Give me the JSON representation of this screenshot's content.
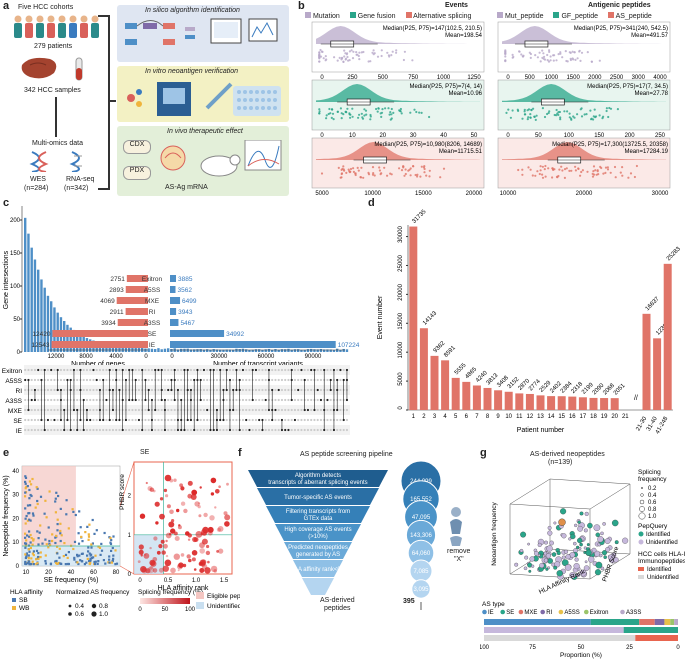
{
  "panel_labels": {
    "a": "a",
    "b": "b",
    "c": "c",
    "d": "d",
    "e": "e",
    "f": "f",
    "g": "g"
  },
  "a": {
    "cohorts": "Five HCC cohorts",
    "patients": "279 patients",
    "samples": "342 HCC samples",
    "multiomics": "Multi-omics data",
    "wes": "WES",
    "wes_n": "(n=284)",
    "rnaseq": "RNA-seq",
    "rnaseq_n": "(n=342)",
    "step1": "In silico algorithm identification",
    "step2": "In vitro neoantigen verification",
    "step3": "In vivo therapeutic effect",
    "cdx": "CDX",
    "pdx": "PDX",
    "mrna": "AS-Ag mRNA",
    "colors": {
      "step1": "#dfe6f2",
      "step2": "#f3f1c4",
      "step3": "#e3efd9",
      "people_teal": "#2b8a8a",
      "people_red": "#d9605a"
    }
  },
  "b": {
    "events_title": "Events",
    "peptides_title": "Antigenic peptides",
    "legend_left": [
      "Mutation",
      "Gene fusion",
      "Alternative splicing"
    ],
    "legend_right": [
      "Mut_peptide",
      "GF_peptide",
      "AS_peptide"
    ],
    "colors": {
      "mutation": "#b8a9c9",
      "fusion": "#2aa58a",
      "as": "#e07468"
    },
    "rows": [
      {
        "median": "Median(P25, P75)=147(102.5, 210.5)",
        "mean": "Mean=198.54",
        "ticks": [
          "0",
          "250",
          "500",
          "750",
          "1000",
          "1250"
        ]
      },
      {
        "median": "Median(P25, P75)=7(4, 14)",
        "mean": "Mean=10.96",
        "ticks": [
          "0",
          "10",
          "20",
          "30",
          "40",
          "50"
        ]
      },
      {
        "median": "Median(P25, P75)=10,980(8206, 14689)",
        "mean": "Mean=11715.51",
        "ticks": [
          "5000",
          "10000",
          "15000",
          "20000"
        ]
      }
    ],
    "rows_right": [
      {
        "median": "Median(P25, P75)=341(240, 542.5)",
        "mean": "Mean=491.57",
        "ticks": [
          "0",
          "500",
          "1000",
          "1500",
          "2000",
          "2500",
          "3000",
          "4000"
        ]
      },
      {
        "median": "Median(P25, P75)=17(7, 34.5)",
        "mean": "Mean=27.78",
        "ticks": [
          "0",
          "50",
          "100",
          "150",
          "200",
          "250"
        ]
      },
      {
        "median": "Median(P25, P75)=17,300(13725.5, 20358)",
        "mean": "Mean=17284.19",
        "ticks": [
          "10000",
          "20000",
          "30000"
        ]
      }
    ]
  },
  "c": {
    "ylabel": "Gene intersections",
    "xlabel_genes": "Number of genes",
    "xlabel_tv": "Number of transcript variants",
    "yticks": [
      "0",
      "50",
      "100",
      "150",
      "200"
    ],
    "gene_ticks": [
      "12000",
      "8000",
      "4000",
      "0"
    ],
    "tv_ticks": [
      "0",
      "30000",
      "60000",
      "90000"
    ],
    "sets": [
      "Exitron",
      "A5SS",
      "MXE",
      "RI",
      "A3SS",
      "SE",
      "IE"
    ],
    "genes": [
      2751,
      2893,
      4069,
      2911,
      3934,
      12420,
      12543
    ],
    "variants": [
      3885,
      3562,
      6499,
      3943,
      5467,
      34992,
      107224
    ],
    "row_labels": [
      "Exitron",
      "A5SS",
      "RI",
      "A3SS",
      "MXE",
      "SE",
      "IE"
    ],
    "colors": {
      "genes": "#e07468",
      "variants": "#4e8fc7",
      "dots": "#333333"
    }
  },
  "chart_data": [
    {
      "type": "bar",
      "title": "",
      "xlabel": "Patient number",
      "ylabel": "Event number",
      "categories": [
        "1",
        "2",
        "3",
        "4",
        "5",
        "6",
        "7",
        "8",
        "9",
        "10",
        "11",
        "12",
        "13",
        "14",
        "15",
        "16",
        "17",
        "18",
        "19",
        "20",
        "21",
        "...",
        "21-30",
        "31-40",
        "41-248"
      ],
      "values": [
        31735,
        14143,
        9362,
        8591,
        5555,
        4865,
        4240,
        3813,
        3408,
        3152,
        2870,
        2774,
        2529,
        2402,
        2384,
        2318,
        2199,
        2090,
        2068,
        2051,
        null,
        null,
        16637,
        12396,
        25283
      ],
      "ylim": [
        0,
        32000
      ],
      "yticks": [
        "0",
        "5000",
        "10000",
        "15000",
        "20000",
        "25000",
        "30000"
      ],
      "color": "#e07468"
    }
  ],
  "e": {
    "title": "SE",
    "xlabel": "SE frequency (%)",
    "ylabel": "Neopeptide frequency (%)",
    "xticks": [
      "10",
      "20",
      "40",
      "60",
      "80"
    ],
    "yticks": [
      "0",
      "10",
      "20",
      "30",
      "40"
    ],
    "zoom_xlabel": "HLA affinity rank",
    "zoom_ylabel": "PHBR score",
    "zoom_xticks": [
      "0",
      "0.5",
      "1.0",
      "1.5"
    ],
    "zoom_yticks": [
      "0",
      "1",
      "2"
    ],
    "legend_hla_title": "HLA affinity",
    "legend_hla": [
      "SB",
      "WB"
    ],
    "legend_norm_title": "Normalized AS frequency",
    "legend_norm": [
      "0.4",
      "0.8",
      "0.6",
      "1.0"
    ],
    "legend_split_title": "Splicing frequency (%)",
    "legend_split_ticks": [
      "0",
      "50",
      "100"
    ],
    "legend_eligible": "Eligible peptides",
    "legend_unidentified": "Unidentified peptides",
    "colors": {
      "sb": "#4a78b0",
      "wb": "#f0b43c",
      "eligible": "#f4c6c2",
      "unident": "#c9dff0",
      "zoom_border": "#e8654f",
      "line": "#3cb39a"
    }
  },
  "f": {
    "title": "AS peptide screening pipeline",
    "steps": [
      {
        "label": "Algorithm detects transcripts of aberrant splicing events",
        "count": "244,099"
      },
      {
        "label": "Tumor-specific AS events",
        "count": "165,552"
      },
      {
        "label": "Filtering transcripts from GTEx data",
        "count": "47,095"
      },
      {
        "label": "High coverage AS events (>10%)",
        "count": "143,306"
      },
      {
        "label": "Predicted neopeptides generated by AS",
        "count": "64,060"
      },
      {
        "label": "HLA affinity rank<0.5",
        "count": "7,085"
      },
      {
        "label": "",
        "count": "3,095"
      }
    ],
    "bottom_label_1": "AS-derived",
    "bottom_label_2": "peptides",
    "final_count": "395",
    "remove_label": "remove",
    "remove_x": "\"X\"",
    "colors": {
      "dark": "#1f5d8f",
      "mid": "#3a8cc4",
      "light": "#7bbde6",
      "circle": "#4aa0d8"
    }
  },
  "g": {
    "title": "AS-derived neopeptides",
    "subtitle": "(n=139)",
    "zlabel": "Neoantigen frequency",
    "xlabel": "HLA Affinity Rank",
    "ylabel": "PHBR Score",
    "legend_split_title": "Splicing",
    "legend_split_title2": "frequency",
    "legend_split": [
      "0.2",
      "0.4",
      "0.6",
      "0.8",
      "1.0"
    ],
    "legend_pep_title": "PepQuery",
    "legend_pep": [
      "Identified",
      "Unidentified"
    ],
    "legend_hcc_title": "HCC cells HLA-I",
    "legend_hcc_title2": "Immunopeptides",
    "legend_hcc": [
      "Identified",
      "Unidentified"
    ],
    "as_type_title": "AS type",
    "as_types": [
      "IE",
      "SE",
      "MXE",
      "RI",
      "A5SS",
      "Exitron",
      "A3SS"
    ],
    "as_type_colors": [
      "#4e8fc7",
      "#2aa58a",
      "#e07468",
      "#7f6aa8",
      "#e8c14a",
      "#9bc46a",
      "#b8a9c9"
    ],
    "bar_xlabel": "Proportion (%)",
    "bar_xticks": [
      "100",
      "75",
      "50",
      "25",
      "0"
    ],
    "colors": {
      "identified": "#2aa58a",
      "unidentified": "#c6b8dc",
      "hcc_identified": "#e8654f",
      "hcc_unidentified": "#d9d9d9"
    }
  }
}
